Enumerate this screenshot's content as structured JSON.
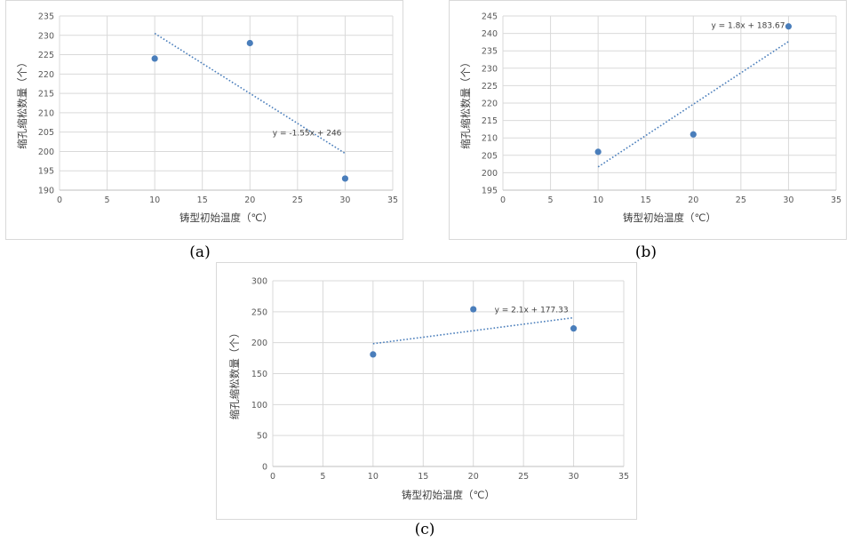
{
  "panels": [
    {
      "caption": "(a)",
      "chart_data": {
        "type": "scatter",
        "x": [
          10,
          20,
          30
        ],
        "y": [
          224,
          228,
          193
        ],
        "xlabel": "铸型初始温度（℃）",
        "ylabel": "缩孔缩松数量（个）",
        "xlim": [
          0,
          35
        ],
        "ylim": [
          190,
          235
        ],
        "xticks": [
          "0",
          "5",
          "10",
          "15",
          "20",
          "25",
          "30",
          "35"
        ],
        "yticks": [
          "190",
          "195",
          "200",
          "205",
          "210",
          "215",
          "220",
          "225",
          "230",
          "235"
        ],
        "grid": true,
        "trendline": {
          "type": "linear",
          "slope": -1.55,
          "intercept": 246,
          "x_range": [
            10,
            30
          ],
          "label": "y = -1.55x + 246"
        },
        "marker_color": "#4a7ebb",
        "trend_color": "#4a7ebb"
      }
    },
    {
      "caption": "(b)",
      "chart_data": {
        "type": "scatter",
        "x": [
          10,
          20,
          30
        ],
        "y": [
          206,
          211,
          242
        ],
        "xlabel": "铸型初始温度（℃）",
        "ylabel": "缩孔缩松数量（个）",
        "xlim": [
          0,
          35
        ],
        "ylim": [
          195,
          245
        ],
        "xticks": [
          "0",
          "5",
          "10",
          "15",
          "20",
          "25",
          "30",
          "35"
        ],
        "yticks": [
          "195",
          "200",
          "205",
          "210",
          "215",
          "220",
          "225",
          "230",
          "235",
          "240",
          "245"
        ],
        "grid": true,
        "trendline": {
          "type": "linear",
          "slope": 1.8,
          "intercept": 183.67,
          "x_range": [
            10,
            30
          ],
          "label": "y = 1.8x + 183.67"
        },
        "marker_color": "#4a7ebb",
        "trend_color": "#4a7ebb"
      }
    },
    {
      "caption": "(c)",
      "chart_data": {
        "type": "scatter",
        "x": [
          10,
          20,
          30
        ],
        "y": [
          181,
          254,
          223
        ],
        "xlabel": "铸型初始温度（℃）",
        "ylabel": "缩孔缩松数量（个）",
        "xlim": [
          0,
          35
        ],
        "ylim": [
          0,
          300
        ],
        "xticks": [
          "0",
          "5",
          "10",
          "15",
          "20",
          "25",
          "30",
          "35"
        ],
        "yticks": [
          "0",
          "50",
          "100",
          "150",
          "200",
          "250",
          "300"
        ],
        "grid": true,
        "trendline": {
          "type": "linear",
          "slope": 2.1,
          "intercept": 177.33,
          "x_range": [
            10,
            30
          ],
          "label": "y = 2.1x + 177.33"
        },
        "marker_color": "#4a7ebb",
        "trend_color": "#4a7ebb"
      }
    }
  ]
}
